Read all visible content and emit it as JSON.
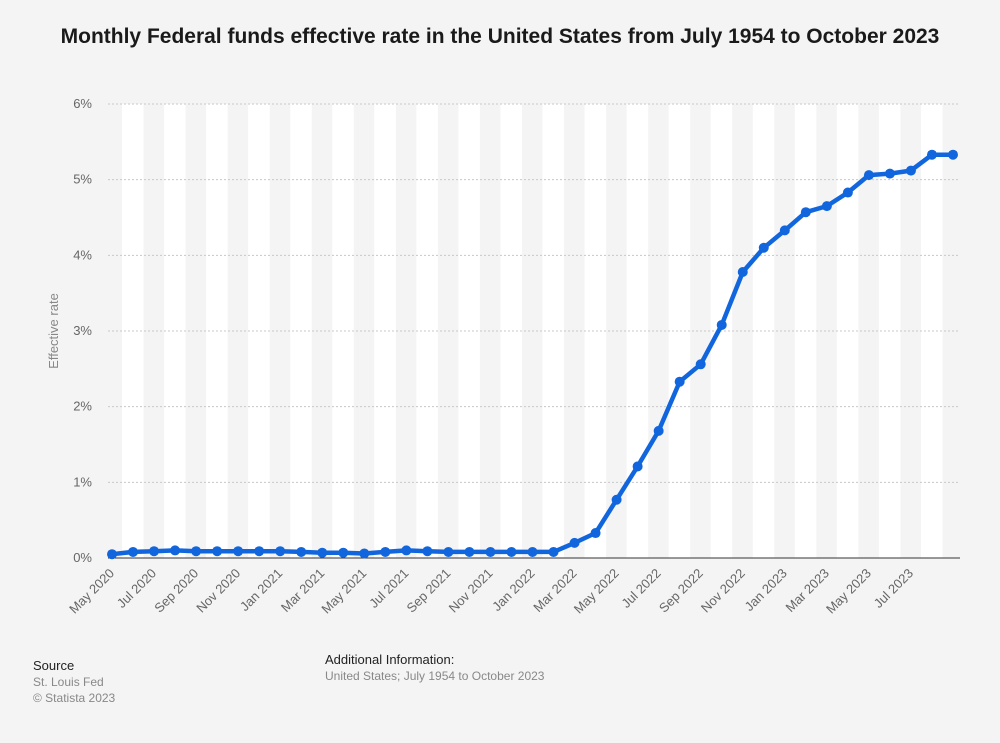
{
  "chart_data": {
    "type": "line",
    "title": "Monthly Federal funds effective rate in the United States from July 1954 to October 2023",
    "xlabel": "",
    "ylabel": "Effective rate",
    "ylim": [
      0,
      6
    ],
    "yticks": [
      "0%",
      "1%",
      "2%",
      "3%",
      "4%",
      "5%",
      "6%"
    ],
    "grid": true,
    "color": "#1166dd",
    "x": [
      "May 2020",
      "Jun 2020",
      "Jul 2020",
      "Aug 2020",
      "Sep 2020",
      "Oct 2020",
      "Nov 2020",
      "Dec 2020",
      "Jan 2021",
      "Feb 2021",
      "Mar 2021",
      "Apr 2021",
      "May 2021",
      "Jun 2021",
      "Jul 2021",
      "Aug 2021",
      "Sep 2021",
      "Oct 2021",
      "Nov 2021",
      "Dec 2021",
      "Jan 2022",
      "Feb 2022",
      "Mar 2022",
      "Apr 2022",
      "May 2022",
      "Jun 2022",
      "Jul 2022",
      "Aug 2022",
      "Sep 2022",
      "Oct 2022",
      "Nov 2022",
      "Dec 2022",
      "Jan 2023",
      "Feb 2023",
      "Mar 2023",
      "Apr 2023",
      "May 2023",
      "Jun 2023",
      "Jul 2023",
      "Aug 2023",
      "Sep 2023"
    ],
    "xtick_labels": [
      "May 2020",
      "",
      "Jul 2020",
      "",
      "Sep 2020",
      "",
      "Nov 2020",
      "",
      "Jan 2021",
      "",
      "Mar 2021",
      "",
      "May 2021",
      "",
      "Jul 2021",
      "",
      "Sep 2021",
      "",
      "Nov 2021",
      "",
      "Jan 2022",
      "",
      "Mar 2022",
      "",
      "May 2022",
      "",
      "Jul 2022",
      "",
      "Sep 2022",
      "",
      "Nov 2022",
      "",
      "Jan 2023",
      "",
      "Mar 2023",
      "",
      "May 2023",
      "",
      "Jul 2023",
      "",
      ""
    ],
    "series": [
      {
        "name": "Effective rate",
        "values": [
          0.05,
          0.08,
          0.09,
          0.1,
          0.09,
          0.09,
          0.09,
          0.09,
          0.09,
          0.08,
          0.07,
          0.07,
          0.06,
          0.08,
          0.1,
          0.09,
          0.08,
          0.08,
          0.08,
          0.08,
          0.08,
          0.08,
          0.2,
          0.33,
          0.77,
          1.21,
          1.68,
          2.33,
          2.56,
          3.08,
          3.78,
          4.1,
          4.33,
          4.57,
          4.65,
          4.83,
          5.06,
          5.08,
          5.12,
          5.33,
          5.33
        ]
      }
    ]
  },
  "footer": {
    "source_heading": "Source",
    "source_line1": "St. Louis Fed",
    "source_line2": "© Statista 2023",
    "info_heading": "Additional Information:",
    "info_text": "United States; July 1954 to October 2023"
  }
}
